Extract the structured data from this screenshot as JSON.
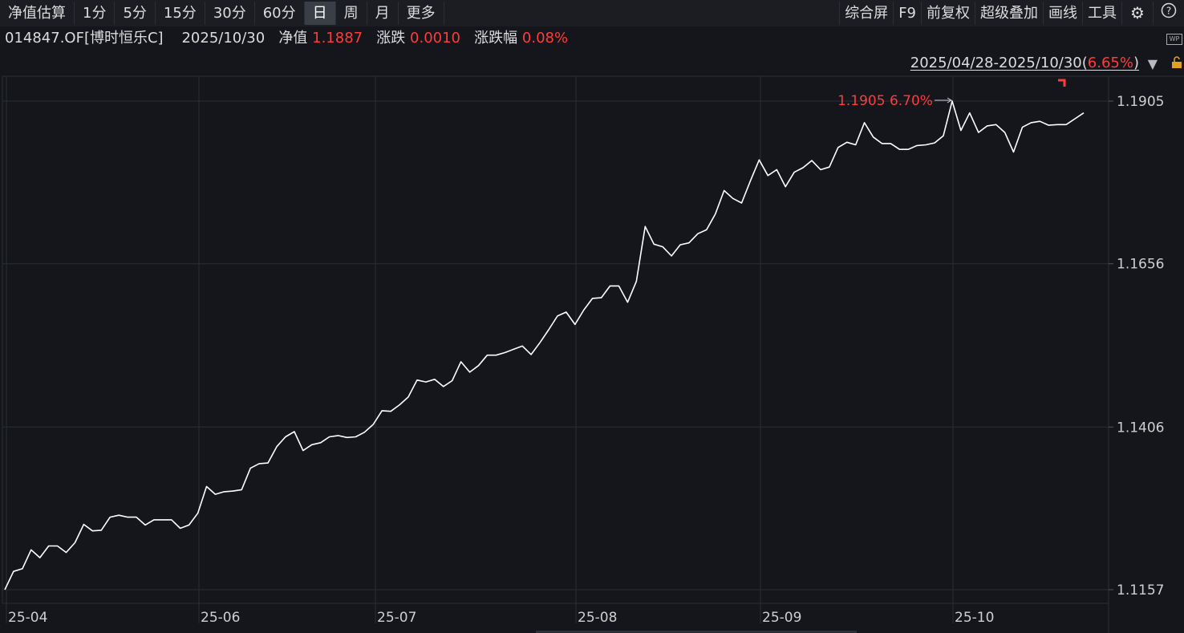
{
  "toolbar": {
    "left": [
      "净值估算",
      "1分",
      "5分",
      "15分",
      "30分",
      "60分",
      "日",
      "周",
      "月",
      "更多"
    ],
    "active": "日",
    "right": [
      "综合屏",
      "F9",
      "前复权",
      "超级叠加",
      "画线",
      "工具"
    ]
  },
  "info": {
    "code": "014847.OF[博时恒乐C]",
    "date": "2025/10/30",
    "nav_label": "净值",
    "nav_value": "1.1887",
    "change_label": "涨跌",
    "change_value": "0.0010",
    "pct_label": "涨跌幅",
    "pct_value": "0.08%"
  },
  "range": {
    "text": "2025/04/28-2025/10/30(",
    "pct": "6.65%",
    "close": ")"
  },
  "colors": {
    "line": "#ffffff",
    "accent": "#ff3b3b",
    "bg": "#14161b",
    "grid": "#2a2d33"
  },
  "chart_data": {
    "type": "line",
    "y_ticks": [
      "1.1905",
      "1.1656",
      "1.1406",
      "1.1157"
    ],
    "y_tick_values": [
      1.1905,
      1.1656,
      1.1406,
      1.1157
    ],
    "x_ticks": [
      "25-04",
      "25-06",
      "25-07",
      "25-08",
      "25-09",
      "25-10"
    ],
    "ylim": [
      1.1157,
      1.1905
    ],
    "max_annotation": "1.1905 6.70%",
    "series": [
      {
        "values": [
          1.1157,
          1.1185,
          1.1189,
          1.1218,
          1.1206,
          1.1224,
          1.1224,
          1.1214,
          1.1229,
          1.1257,
          1.1247,
          1.1248,
          1.1268,
          1.1271,
          1.1268,
          1.1268,
          1.1256,
          1.1264,
          1.1264,
          1.1264,
          1.1251,
          1.1256,
          1.1274,
          1.1315,
          1.1303,
          1.1307,
          1.1308,
          1.131,
          1.1343,
          1.135,
          1.1351,
          1.1376,
          1.1391,
          1.1399,
          1.137,
          1.1379,
          1.1382,
          1.1391,
          1.1393,
          1.139,
          1.1391,
          1.1398,
          1.141,
          1.1431,
          1.143,
          1.144,
          1.1452,
          1.1478,
          1.1475,
          1.1479,
          1.1468,
          1.1477,
          1.1506,
          1.149,
          1.15,
          1.1516,
          1.1516,
          1.152,
          1.1525,
          1.153,
          1.1517,
          1.1535,
          1.1555,
          1.1576,
          1.1582,
          1.1563,
          1.1585,
          1.1603,
          1.1604,
          1.1622,
          1.1622,
          1.1597,
          1.1629,
          1.1713,
          1.1686,
          1.1682,
          1.1668,
          1.1685,
          1.1688,
          1.1702,
          1.1708,
          1.1732,
          1.1768,
          1.1756,
          1.1749,
          1.1783,
          1.1815,
          1.1791,
          1.18,
          1.1774,
          1.1796,
          1.1803,
          1.1814,
          1.18,
          1.1804,
          1.1834,
          1.1842,
          1.1838,
          1.1872,
          1.185,
          1.184,
          1.184,
          1.1831,
          1.1831,
          1.1837,
          1.1838,
          1.1841,
          1.1852,
          1.1905,
          1.186,
          1.1887,
          1.1857,
          1.1867,
          1.1869,
          1.1857,
          1.1827,
          1.1865,
          1.1872,
          1.1874,
          1.1868,
          1.1869,
          1.1869,
          1.1878,
          1.1887
        ]
      }
    ]
  }
}
